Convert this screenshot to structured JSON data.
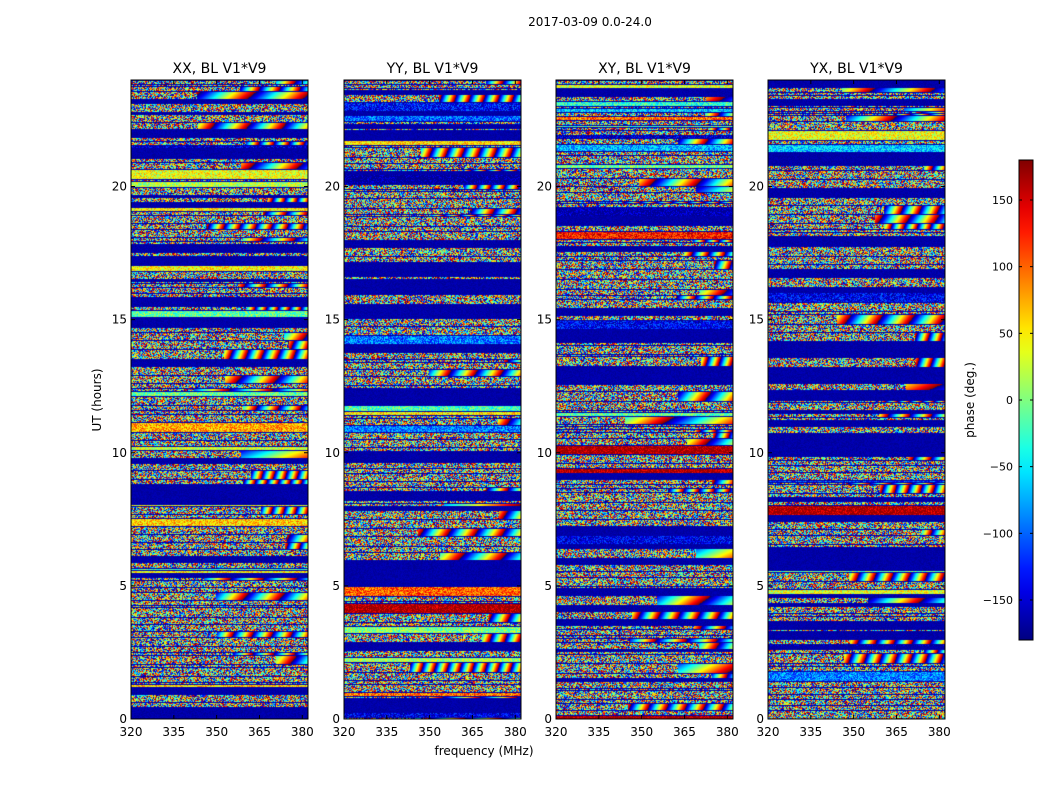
{
  "figure": {
    "suptitle": "2017-03-09 0.0-24.0",
    "xlabel": "frequency (MHz)",
    "ylabel": "UT (hours)"
  },
  "chart_data": {
    "type": "heatmap",
    "title": "2017-03-09 0.0-24.0",
    "xlabel": "frequency (MHz)",
    "ylabel": "UT (hours)",
    "xlim": [
      320,
      382
    ],
    "ylim": [
      0,
      24
    ],
    "xticks": [
      320,
      335,
      350,
      365,
      380
    ],
    "yticks": [
      0,
      5,
      10,
      15,
      20
    ],
    "colormap": "jet",
    "panels": [
      {
        "title": "XX, BL V1*V9",
        "seed": 11
      },
      {
        "title": "YY, BL V1*V9",
        "seed": 23
      },
      {
        "title": "XY, BL V1*V9",
        "seed": 37
      },
      {
        "title": "YX, BL V1*V9",
        "seed": 53
      }
    ],
    "colorbar": {
      "label": "phase (deg.)",
      "range": [
        -180,
        180
      ],
      "ticks": [
        150,
        100,
        50,
        0,
        -50,
        -100,
        -150
      ],
      "tick_labels": [
        "150",
        "100",
        "50",
        "0",
        "−50",
        "−100",
        "−150"
      ]
    }
  }
}
